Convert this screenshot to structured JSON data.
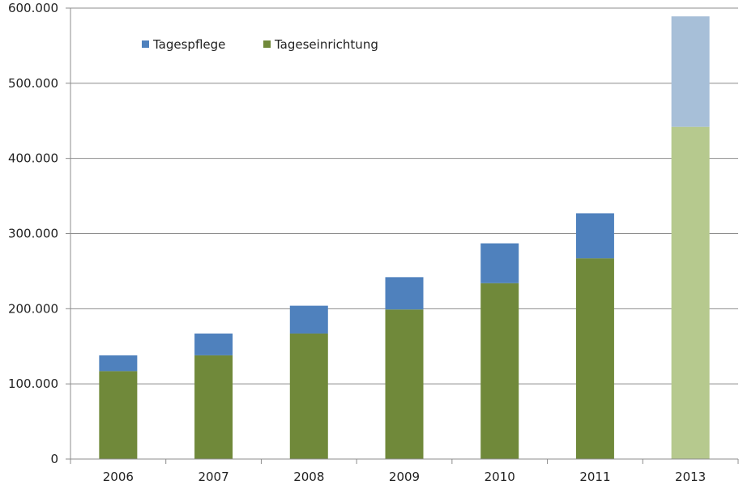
{
  "chart_data": {
    "type": "bar",
    "stacked": true,
    "categories": [
      "2006",
      "2007",
      "2008",
      "2009",
      "2010",
      "2011",
      "2013"
    ],
    "series": [
      {
        "name": "Tageseinrichtung",
        "color": "#70893a",
        "projected_color": "#b6c98e",
        "values": [
          117000,
          138000,
          167000,
          199000,
          234000,
          267000,
          442000
        ]
      },
      {
        "name": "Tagespflege",
        "color": "#4f81bd",
        "projected_color": "#a7bfd8",
        "values": [
          21000,
          29000,
          37000,
          43000,
          53000,
          60000,
          147000
        ]
      }
    ],
    "projected_categories": [
      "2013"
    ],
    "ylim": [
      0,
      600000
    ],
    "y_ticks": [
      {
        "value": 0,
        "label": "0"
      },
      {
        "value": 100000,
        "label": "100.000"
      },
      {
        "value": 200000,
        "label": "200.000"
      },
      {
        "value": 300000,
        "label": "300.000"
      },
      {
        "value": 400000,
        "label": "400.000"
      },
      {
        "value": 500000,
        "label": "500.000"
      },
      {
        "value": 600000,
        "label": "600.000"
      }
    ],
    "grid": true,
    "legend": {
      "placement": "top-left",
      "entries": [
        {
          "label": "Tagespflege",
          "color": "#4f81bd"
        },
        {
          "label": "Tageseinrichtung",
          "color": "#70893a"
        }
      ]
    },
    "title": "",
    "xlabel": "",
    "ylabel": ""
  }
}
